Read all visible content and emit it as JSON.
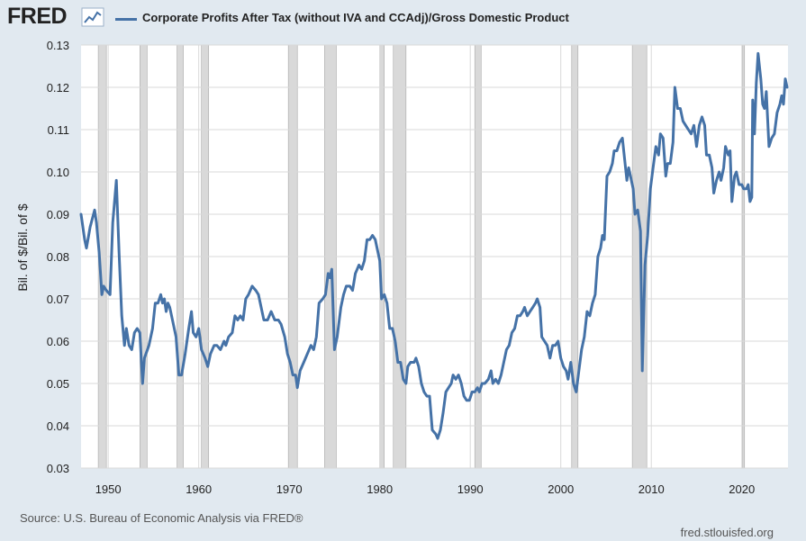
{
  "brand": {
    "logo_text": "FRED"
  },
  "footer": {
    "source": "Source: U.S. Bureau of Economic Analysis via FRED®",
    "site": "fred.stlouisfed.org"
  },
  "colors": {
    "series": "#4572a7",
    "recession": "#d9d9d9",
    "background": "#e1e9f0",
    "plot": "#ffffff",
    "grid": "#d9d9d9"
  },
  "chart_data": {
    "type": "line",
    "title": "",
    "ylabel": "Bil. of $/Bil. of $",
    "xlabel": "",
    "xlim": [
      1947,
      2025.1
    ],
    "ylim": [
      0.03,
      0.13
    ],
    "x_ticks": [
      1950,
      1960,
      1970,
      1980,
      1990,
      2000,
      2010,
      2020
    ],
    "y_ticks": [
      0.03,
      0.04,
      0.05,
      0.06,
      0.07,
      0.08,
      0.09,
      0.1,
      0.11,
      0.12,
      0.13
    ],
    "y_tick_labels": [
      "0.03",
      "0.04",
      "0.05",
      "0.06",
      "0.07",
      "0.08",
      "0.09",
      "0.10",
      "0.11",
      "0.12",
      "0.13"
    ],
    "grid": true,
    "legend_position": "top",
    "recessions": [
      [
        1948.9,
        1949.8
      ],
      [
        1953.5,
        1954.3
      ],
      [
        1957.6,
        1958.3
      ],
      [
        1960.3,
        1961.1
      ],
      [
        1969.9,
        1970.9
      ],
      [
        1973.9,
        1975.2
      ],
      [
        1980.0,
        1980.5
      ],
      [
        1981.5,
        1982.9
      ],
      [
        1990.5,
        1991.2
      ],
      [
        2001.2,
        2001.9
      ],
      [
        2007.9,
        2009.5
      ],
      [
        2020.1,
        2020.3
      ]
    ],
    "series": [
      {
        "name": "Corporate Profits After Tax (without IVA and CCAdj)/Gross Domestic Product",
        "points": [
          [
            1947.0,
            0.09
          ],
          [
            1947.4,
            0.084
          ],
          [
            1947.6,
            0.082
          ],
          [
            1948.0,
            0.087
          ],
          [
            1948.5,
            0.091
          ],
          [
            1948.7,
            0.088
          ],
          [
            1949.0,
            0.081
          ],
          [
            1949.3,
            0.071
          ],
          [
            1949.5,
            0.073
          ],
          [
            1949.8,
            0.072
          ],
          [
            1950.2,
            0.071
          ],
          [
            1950.5,
            0.088
          ],
          [
            1950.9,
            0.098
          ],
          [
            1951.2,
            0.081
          ],
          [
            1951.5,
            0.066
          ],
          [
            1951.8,
            0.059
          ],
          [
            1952.0,
            0.063
          ],
          [
            1952.3,
            0.059
          ],
          [
            1952.6,
            0.058
          ],
          [
            1952.9,
            0.062
          ],
          [
            1953.2,
            0.063
          ],
          [
            1953.5,
            0.062
          ],
          [
            1953.8,
            0.05
          ],
          [
            1954.0,
            0.056
          ],
          [
            1954.5,
            0.059
          ],
          [
            1954.9,
            0.063
          ],
          [
            1955.2,
            0.069
          ],
          [
            1955.5,
            0.069
          ],
          [
            1955.8,
            0.071
          ],
          [
            1956.0,
            0.069
          ],
          [
            1956.2,
            0.07
          ],
          [
            1956.4,
            0.067
          ],
          [
            1956.6,
            0.069
          ],
          [
            1956.8,
            0.068
          ],
          [
            1957.1,
            0.065
          ],
          [
            1957.5,
            0.061
          ],
          [
            1957.8,
            0.052
          ],
          [
            1958.1,
            0.052
          ],
          [
            1958.5,
            0.057
          ],
          [
            1958.9,
            0.063
          ],
          [
            1959.2,
            0.067
          ],
          [
            1959.4,
            0.062
          ],
          [
            1959.7,
            0.061
          ],
          [
            1960.0,
            0.063
          ],
          [
            1960.3,
            0.058
          ],
          [
            1960.7,
            0.056
          ],
          [
            1961.0,
            0.054
          ],
          [
            1961.3,
            0.057
          ],
          [
            1961.7,
            0.059
          ],
          [
            1962.0,
            0.059
          ],
          [
            1962.4,
            0.058
          ],
          [
            1962.8,
            0.06
          ],
          [
            1963.0,
            0.059
          ],
          [
            1963.3,
            0.061
          ],
          [
            1963.7,
            0.062
          ],
          [
            1964.0,
            0.066
          ],
          [
            1964.3,
            0.065
          ],
          [
            1964.6,
            0.066
          ],
          [
            1964.9,
            0.065
          ],
          [
            1965.2,
            0.07
          ],
          [
            1965.5,
            0.071
          ],
          [
            1965.9,
            0.073
          ],
          [
            1966.3,
            0.072
          ],
          [
            1966.6,
            0.071
          ],
          [
            1966.9,
            0.068
          ],
          [
            1967.2,
            0.065
          ],
          [
            1967.6,
            0.065
          ],
          [
            1968.0,
            0.067
          ],
          [
            1968.4,
            0.065
          ],
          [
            1968.8,
            0.065
          ],
          [
            1969.1,
            0.064
          ],
          [
            1969.5,
            0.061
          ],
          [
            1969.8,
            0.057
          ],
          [
            1970.1,
            0.055
          ],
          [
            1970.4,
            0.052
          ],
          [
            1970.7,
            0.052
          ],
          [
            1970.9,
            0.049
          ],
          [
            1971.2,
            0.053
          ],
          [
            1971.6,
            0.055
          ],
          [
            1972.0,
            0.057
          ],
          [
            1972.4,
            0.059
          ],
          [
            1972.7,
            0.058
          ],
          [
            1973.0,
            0.061
          ],
          [
            1973.3,
            0.069
          ],
          [
            1973.7,
            0.07
          ],
          [
            1974.0,
            0.071
          ],
          [
            1974.3,
            0.076
          ],
          [
            1974.5,
            0.075
          ],
          [
            1974.7,
            0.077
          ],
          [
            1975.0,
            0.058
          ],
          [
            1975.3,
            0.061
          ],
          [
            1975.7,
            0.068
          ],
          [
            1976.0,
            0.071
          ],
          [
            1976.3,
            0.073
          ],
          [
            1976.7,
            0.073
          ],
          [
            1977.0,
            0.072
          ],
          [
            1977.3,
            0.076
          ],
          [
            1977.7,
            0.078
          ],
          [
            1978.0,
            0.077
          ],
          [
            1978.3,
            0.079
          ],
          [
            1978.6,
            0.084
          ],
          [
            1978.9,
            0.084
          ],
          [
            1979.2,
            0.085
          ],
          [
            1979.5,
            0.084
          ],
          [
            1979.8,
            0.081
          ],
          [
            1980.0,
            0.079
          ],
          [
            1980.2,
            0.07
          ],
          [
            1980.5,
            0.071
          ],
          [
            1980.8,
            0.069
          ],
          [
            1981.1,
            0.063
          ],
          [
            1981.4,
            0.063
          ],
          [
            1981.7,
            0.06
          ],
          [
            1982.0,
            0.055
          ],
          [
            1982.3,
            0.055
          ],
          [
            1982.6,
            0.051
          ],
          [
            1982.9,
            0.05
          ],
          [
            1983.1,
            0.054
          ],
          [
            1983.4,
            0.055
          ],
          [
            1983.8,
            0.055
          ],
          [
            1984.0,
            0.056
          ],
          [
            1984.3,
            0.054
          ],
          [
            1984.6,
            0.05
          ],
          [
            1984.9,
            0.048
          ],
          [
            1985.2,
            0.047
          ],
          [
            1985.5,
            0.047
          ],
          [
            1985.8,
            0.039
          ],
          [
            1986.2,
            0.038
          ],
          [
            1986.4,
            0.037
          ],
          [
            1986.7,
            0.039
          ],
          [
            1987.0,
            0.043
          ],
          [
            1987.3,
            0.048
          ],
          [
            1987.6,
            0.049
          ],
          [
            1987.9,
            0.05
          ],
          [
            1988.1,
            0.052
          ],
          [
            1988.4,
            0.051
          ],
          [
            1988.7,
            0.052
          ],
          [
            1989.0,
            0.05
          ],
          [
            1989.3,
            0.047
          ],
          [
            1989.6,
            0.046
          ],
          [
            1989.9,
            0.046
          ],
          [
            1990.2,
            0.048
          ],
          [
            1990.5,
            0.048
          ],
          [
            1990.8,
            0.049
          ],
          [
            1991.0,
            0.048
          ],
          [
            1991.3,
            0.05
          ],
          [
            1991.6,
            0.05
          ],
          [
            1992.0,
            0.051
          ],
          [
            1992.3,
            0.053
          ],
          [
            1992.5,
            0.05
          ],
          [
            1992.8,
            0.051
          ],
          [
            1993.1,
            0.05
          ],
          [
            1993.4,
            0.052
          ],
          [
            1993.7,
            0.055
          ],
          [
            1994.0,
            0.058
          ],
          [
            1994.3,
            0.059
          ],
          [
            1994.6,
            0.062
          ],
          [
            1994.9,
            0.063
          ],
          [
            1995.2,
            0.066
          ],
          [
            1995.5,
            0.066
          ],
          [
            1995.8,
            0.067
          ],
          [
            1996.0,
            0.068
          ],
          [
            1996.3,
            0.066
          ],
          [
            1996.6,
            0.067
          ],
          [
            1996.9,
            0.068
          ],
          [
            1997.2,
            0.069
          ],
          [
            1997.4,
            0.07
          ],
          [
            1997.7,
            0.068
          ],
          [
            1997.9,
            0.061
          ],
          [
            1998.2,
            0.06
          ],
          [
            1998.5,
            0.059
          ],
          [
            1998.8,
            0.056
          ],
          [
            1999.1,
            0.059
          ],
          [
            1999.4,
            0.059
          ],
          [
            1999.7,
            0.06
          ],
          [
            2000.0,
            0.056
          ],
          [
            2000.3,
            0.054
          ],
          [
            2000.6,
            0.053
          ],
          [
            2000.8,
            0.051
          ],
          [
            2001.1,
            0.055
          ],
          [
            2001.4,
            0.05
          ],
          [
            2001.7,
            0.048
          ],
          [
            2002.0,
            0.053
          ],
          [
            2002.3,
            0.058
          ],
          [
            2002.6,
            0.061
          ],
          [
            2002.9,
            0.067
          ],
          [
            2003.2,
            0.066
          ],
          [
            2003.5,
            0.069
          ],
          [
            2003.8,
            0.071
          ],
          [
            2004.1,
            0.08
          ],
          [
            2004.4,
            0.082
          ],
          [
            2004.6,
            0.085
          ],
          [
            2004.8,
            0.084
          ],
          [
            2005.1,
            0.099
          ],
          [
            2005.4,
            0.1
          ],
          [
            2005.7,
            0.102
          ],
          [
            2005.9,
            0.105
          ],
          [
            2006.2,
            0.105
          ],
          [
            2006.5,
            0.107
          ],
          [
            2006.8,
            0.108
          ],
          [
            2007.1,
            0.102
          ],
          [
            2007.3,
            0.098
          ],
          [
            2007.5,
            0.101
          ],
          [
            2007.8,
            0.098
          ],
          [
            2008.0,
            0.096
          ],
          [
            2008.2,
            0.09
          ],
          [
            2008.5,
            0.091
          ],
          [
            2008.8,
            0.086
          ],
          [
            2009.0,
            0.053
          ],
          [
            2009.3,
            0.078
          ],
          [
            2009.6,
            0.085
          ],
          [
            2009.9,
            0.096
          ],
          [
            2010.2,
            0.101
          ],
          [
            2010.5,
            0.106
          ],
          [
            2010.8,
            0.104
          ],
          [
            2011.0,
            0.109
          ],
          [
            2011.3,
            0.108
          ],
          [
            2011.6,
            0.099
          ],
          [
            2011.8,
            0.102
          ],
          [
            2012.1,
            0.102
          ],
          [
            2012.4,
            0.107
          ],
          [
            2012.6,
            0.12
          ],
          [
            2012.9,
            0.115
          ],
          [
            2013.2,
            0.115
          ],
          [
            2013.5,
            0.112
          ],
          [
            2013.8,
            0.111
          ],
          [
            2014.1,
            0.11
          ],
          [
            2014.4,
            0.109
          ],
          [
            2014.7,
            0.111
          ],
          [
            2015.0,
            0.106
          ],
          [
            2015.3,
            0.111
          ],
          [
            2015.6,
            0.113
          ],
          [
            2015.9,
            0.111
          ],
          [
            2016.1,
            0.104
          ],
          [
            2016.4,
            0.104
          ],
          [
            2016.7,
            0.101
          ],
          [
            2016.9,
            0.095
          ],
          [
            2017.2,
            0.098
          ],
          [
            2017.5,
            0.1
          ],
          [
            2017.7,
            0.098
          ],
          [
            2018.0,
            0.101
          ],
          [
            2018.2,
            0.106
          ],
          [
            2018.5,
            0.104
          ],
          [
            2018.7,
            0.105
          ],
          [
            2018.9,
            0.093
          ],
          [
            2019.2,
            0.099
          ],
          [
            2019.4,
            0.1
          ],
          [
            2019.7,
            0.097
          ],
          [
            2020.0,
            0.097
          ],
          [
            2020.2,
            0.096
          ],
          [
            2020.5,
            0.096
          ],
          [
            2020.7,
            0.097
          ],
          [
            2020.9,
            0.093
          ],
          [
            2021.1,
            0.094
          ],
          [
            2021.2,
            0.117
          ],
          [
            2021.4,
            0.109
          ],
          [
            2021.6,
            0.121
          ],
          [
            2021.8,
            0.128
          ],
          [
            2022.1,
            0.122
          ],
          [
            2022.3,
            0.116
          ],
          [
            2022.5,
            0.115
          ],
          [
            2022.7,
            0.119
          ],
          [
            2023.0,
            0.106
          ],
          [
            2023.3,
            0.108
          ],
          [
            2023.6,
            0.109
          ],
          [
            2023.9,
            0.114
          ],
          [
            2024.2,
            0.116
          ],
          [
            2024.4,
            0.118
          ],
          [
            2024.6,
            0.116
          ],
          [
            2024.8,
            0.122
          ],
          [
            2025.0,
            0.12
          ]
        ]
      }
    ]
  }
}
